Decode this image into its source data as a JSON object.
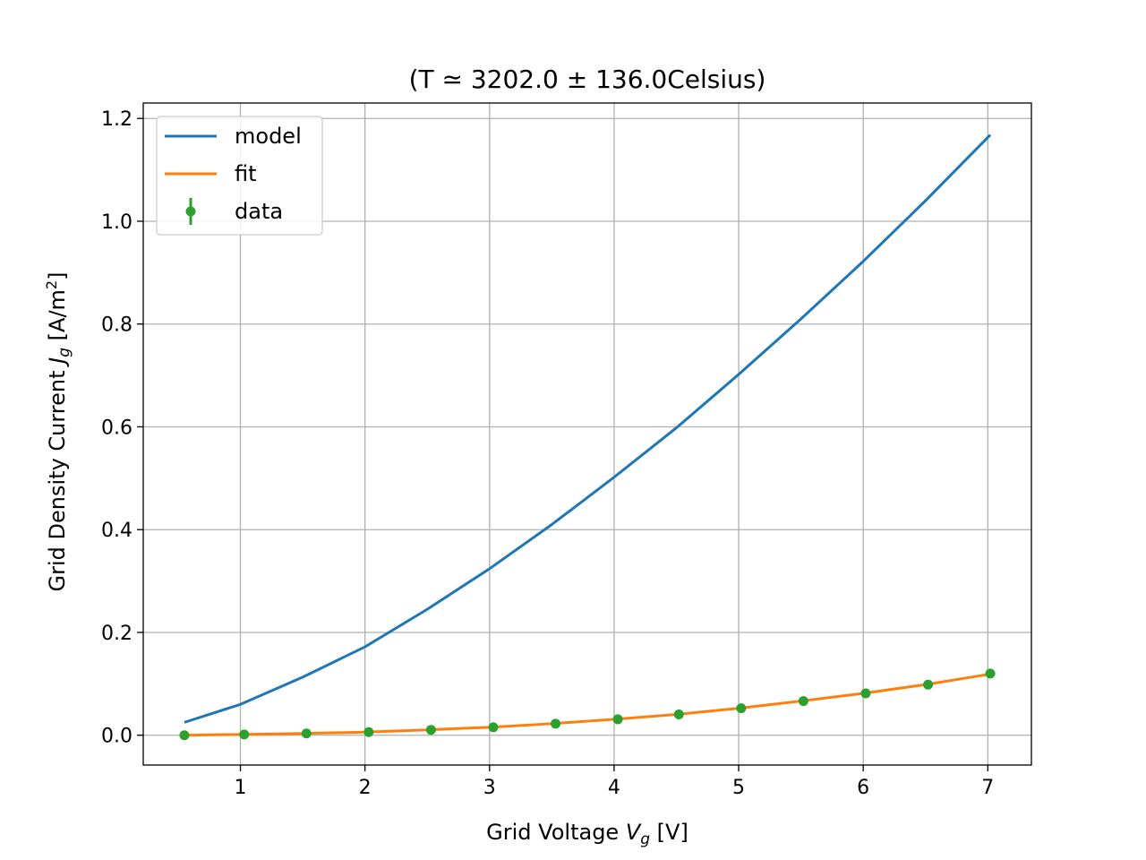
{
  "chart_data": {
    "type": "line",
    "title": "(T ≃ 3202.0 ± 136.0Celsius)",
    "xlabel": {
      "prefix": "Grid Voltage ",
      "symbol": "V",
      "sub": "g",
      "suffix": " [V]"
    },
    "ylabel": {
      "prefix": "Grid Density Current ",
      "symbol": "J",
      "sub": "g",
      "suffix": " [A/m",
      "sup": "2",
      "end": "]"
    },
    "xlim": [
      0.22,
      7.35
    ],
    "ylim": [
      -0.058,
      1.23
    ],
    "xticks": [
      1,
      2,
      3,
      4,
      5,
      6,
      7
    ],
    "yticks": [
      0.0,
      0.2,
      0.4,
      0.6,
      0.8,
      1.0,
      1.2
    ],
    "xtick_labels": [
      "1",
      "2",
      "3",
      "4",
      "5",
      "6",
      "7"
    ],
    "ytick_labels": [
      "0.0",
      "0.2",
      "0.4",
      "0.6",
      "0.8",
      "1.0",
      "1.2"
    ],
    "grid": true,
    "legend_position": "top-left",
    "series": [
      {
        "name": "model",
        "kind": "line",
        "color": "#1f77b4",
        "x": [
          0.55,
          1.0,
          1.5,
          2.0,
          2.5,
          3.0,
          3.5,
          4.0,
          4.5,
          5.0,
          5.5,
          6.0,
          6.5,
          7.02
        ],
        "y": [
          0.025,
          0.06,
          0.113,
          0.172,
          0.245,
          0.324,
          0.41,
          0.502,
          0.598,
          0.702,
          0.81,
          0.922,
          1.04,
          1.168
        ]
      },
      {
        "name": "fit",
        "kind": "line",
        "color": "#ff7f0e",
        "x": [
          0.55,
          1.0,
          1.5,
          2.0,
          2.5,
          3.0,
          3.5,
          4.0,
          4.5,
          5.0,
          5.5,
          6.0,
          6.5,
          7.02
        ],
        "y": [
          0.0,
          0.0015,
          0.0035,
          0.006,
          0.0105,
          0.0155,
          0.0225,
          0.031,
          0.0405,
          0.0525,
          0.0665,
          0.0815,
          0.0985,
          0.119
        ]
      },
      {
        "name": "data",
        "kind": "errorbar",
        "color": "#2ca02c",
        "x": [
          0.55,
          1.03,
          1.53,
          2.03,
          2.53,
          3.03,
          3.53,
          4.03,
          4.52,
          5.02,
          5.52,
          6.02,
          6.52,
          7.02
        ],
        "y": [
          0.0,
          0.0015,
          0.0035,
          0.006,
          0.0105,
          0.0155,
          0.0225,
          0.031,
          0.0405,
          0.0525,
          0.0665,
          0.0815,
          0.0985,
          0.12
        ]
      }
    ]
  }
}
